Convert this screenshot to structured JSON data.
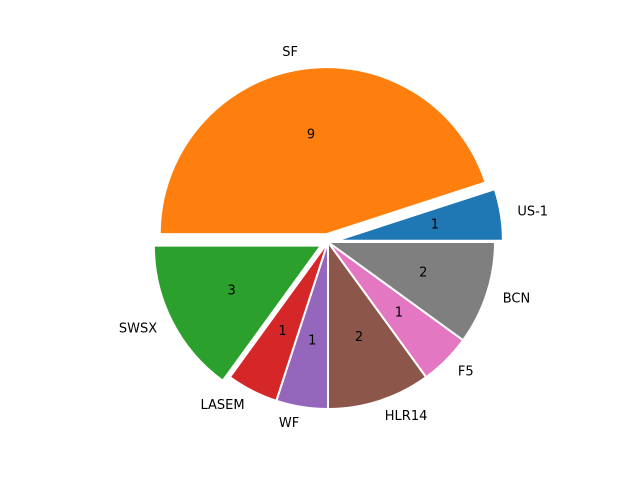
{
  "chart_data": {
    "type": "pie",
    "title": "",
    "categories": [
      "US-1",
      "SF",
      "SWSX",
      "LASEM",
      "WF",
      "HLR14",
      "F5",
      "BCN"
    ],
    "values": [
      1,
      9,
      3,
      1,
      1,
      2,
      1,
      2
    ],
    "value_labels": [
      "1",
      "9",
      "3",
      "1",
      "1",
      "2",
      "1",
      "2"
    ],
    "exploded": [
      true,
      true,
      true,
      false,
      false,
      false,
      false,
      false
    ],
    "start_angle_deg": 0,
    "direction": "counterclockwise",
    "legend": "none",
    "colors": [
      "#1f77b4",
      "#ff7f0e",
      "#2ca02c",
      "#d62728",
      "#9467bd",
      "#8c564b",
      "#e377c2",
      "#7f7f7f"
    ]
  }
}
